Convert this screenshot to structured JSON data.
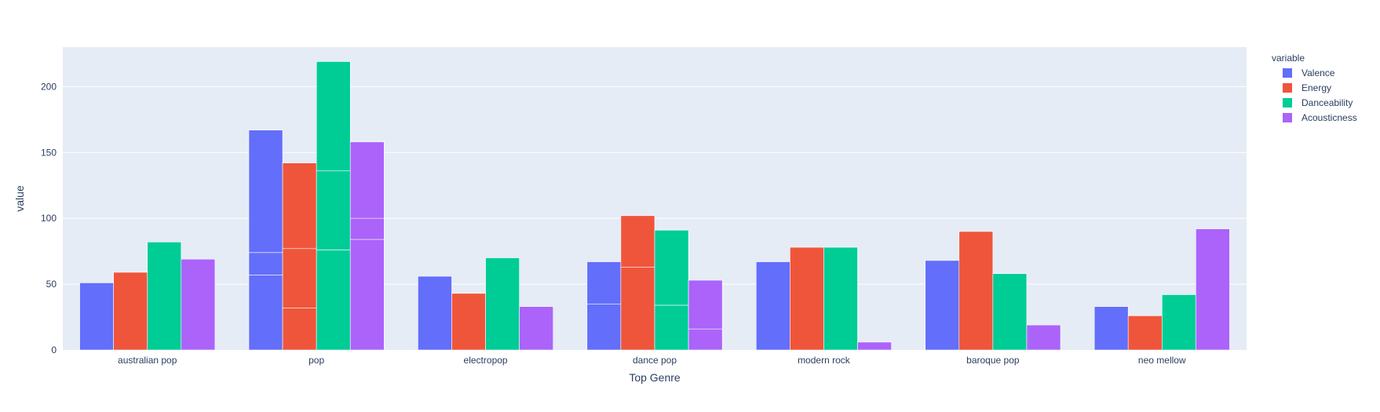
{
  "chart_data": {
    "type": "bar",
    "barmode": "group",
    "xlabel": "Top Genre",
    "ylabel": "value",
    "ylim": [
      0,
      230
    ],
    "yticks": [
      0,
      50,
      100,
      150,
      200
    ],
    "grid": true,
    "legend_title": "variable",
    "legend_position": "top-right",
    "categories": [
      "australian pop",
      "pop",
      "electropop",
      "dance pop",
      "modern rock",
      "baroque pop",
      "neo mellow"
    ],
    "series": [
      {
        "name": "Valence",
        "color": "#636efa",
        "values": [
          51,
          167,
          56,
          67,
          67,
          68,
          33
        ],
        "segments": [
          [
            51
          ],
          [
            57,
            17,
            93
          ],
          [
            56
          ],
          [
            35,
            32
          ],
          [
            67
          ],
          [
            68
          ],
          [
            33
          ]
        ]
      },
      {
        "name": "Energy",
        "color": "#ef553b",
        "values": [
          59,
          142,
          43,
          102,
          78,
          90,
          26
        ],
        "segments": [
          [
            59
          ],
          [
            32,
            45,
            65
          ],
          [
            43
          ],
          [
            63,
            39
          ],
          [
            78
          ],
          [
            90
          ],
          [
            26
          ]
        ]
      },
      {
        "name": "Danceability",
        "color": "#00cc96",
        "values": [
          82,
          219,
          70,
          91,
          78,
          58,
          42
        ],
        "segments": [
          [
            82
          ],
          [
            76,
            60,
            83
          ],
          [
            70
          ],
          [
            34,
            57
          ],
          [
            78
          ],
          [
            58
          ],
          [
            42
          ]
        ]
      },
      {
        "name": "Acousticness",
        "color": "#ab63fa",
        "values": [
          69,
          158,
          33,
          53,
          6,
          19,
          92
        ],
        "segments": [
          [
            69
          ],
          [
            84,
            16,
            58
          ],
          [
            33
          ],
          [
            16,
            37
          ],
          [
            6
          ],
          [
            19
          ],
          [
            92
          ]
        ]
      }
    ]
  }
}
